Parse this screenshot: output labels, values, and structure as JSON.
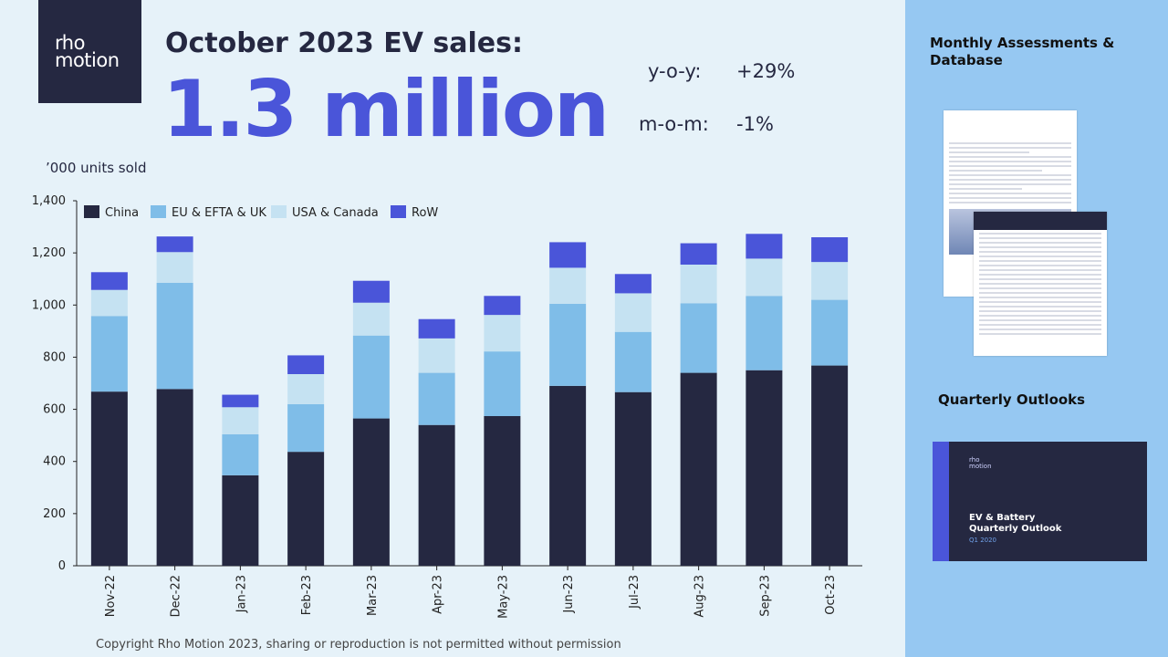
{
  "logo": {
    "line1": "rho",
    "line2": "motion"
  },
  "header": {
    "title": "October 2023 EV sales:",
    "value": "1.3 million"
  },
  "stats": [
    {
      "label": "y-o-y:",
      "value": "+29%"
    },
    {
      "label": "m-o-m:",
      "value": "-1%"
    }
  ],
  "units_label": "’000 units sold",
  "copyright": "Copyright Rho Motion 2023, sharing or reproduction is not permitted without permission",
  "sidebar": {
    "section1_title": "Monthly Assessments & Database",
    "section2_title": "Quarterly Outlooks",
    "cover_title_line1": "EV & Battery",
    "cover_title_line2": "Quarterly Outlook",
    "cover_subtitle": "Q1 2020",
    "cover_logo_line1": "rho",
    "cover_logo_line2": "motion"
  },
  "colors": {
    "China": "#252841",
    "EU & EFTA & UK": "#7fbde8",
    "USA & Canada": "#c5e2f2",
    "RoW": "#4a55d9",
    "accent": "#4a55d9",
    "sidebar_bg": "#96c8f2"
  },
  "chart_data": {
    "type": "bar",
    "stacked": true,
    "categories": [
      "Nov-22",
      "Dec-22",
      "Jan-23",
      "Feb-23",
      "Mar-23",
      "Apr-23",
      "May-23",
      "Jun-23",
      "Jul-23",
      "Aug-23",
      "Sep-23",
      "Oct-23"
    ],
    "series": [
      {
        "name": "China",
        "values": [
          668,
          678,
          347,
          437,
          565,
          540,
          574,
          690,
          666,
          740,
          750,
          768
        ]
      },
      {
        "name": "EU & EFTA & UK",
        "values": [
          290,
          407,
          157,
          183,
          318,
          200,
          248,
          315,
          231,
          267,
          285,
          252
        ]
      },
      {
        "name": "USA & Canada",
        "values": [
          100,
          118,
          104,
          115,
          126,
          132,
          140,
          138,
          148,
          148,
          143,
          145
        ]
      },
      {
        "name": "RoW",
        "values": [
          68,
          60,
          48,
          72,
          84,
          74,
          73,
          98,
          74,
          82,
          95,
          95
        ]
      }
    ],
    "ylim": [
      0,
      1400
    ],
    "yticks": [
      0,
      200,
      400,
      600,
      800,
      1000,
      1200,
      1400
    ],
    "ytick_labels": [
      "0",
      "200",
      "400",
      "600",
      "800",
      "1,000",
      "1,200",
      "1,400"
    ],
    "ylabel": "’000 units sold",
    "legend_position": "top-left",
    "grid": false
  }
}
